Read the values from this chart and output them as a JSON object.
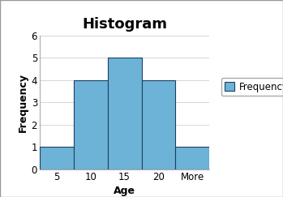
{
  "title": "Histogram",
  "xlabel": "Age",
  "ylabel": "Frequency",
  "categories": [
    "5",
    "10",
    "15",
    "20",
    "More"
  ],
  "values": [
    1,
    4,
    5,
    4,
    1
  ],
  "bar_color": "#6db3d8",
  "bar_edge_color": "#1f3f5f",
  "ylim": [
    0,
    6
  ],
  "yticks": [
    0,
    1,
    2,
    3,
    4,
    5,
    6
  ],
  "legend_label": "Frequency",
  "legend_color": "#6db3d8",
  "title_fontsize": 13,
  "label_fontsize": 9,
  "tick_fontsize": 8.5,
  "background_color": "#ffffff",
  "figure_edge_color": "#999999",
  "grid_color": "#d0d0d0",
  "spine_color": "#aaaaaa"
}
